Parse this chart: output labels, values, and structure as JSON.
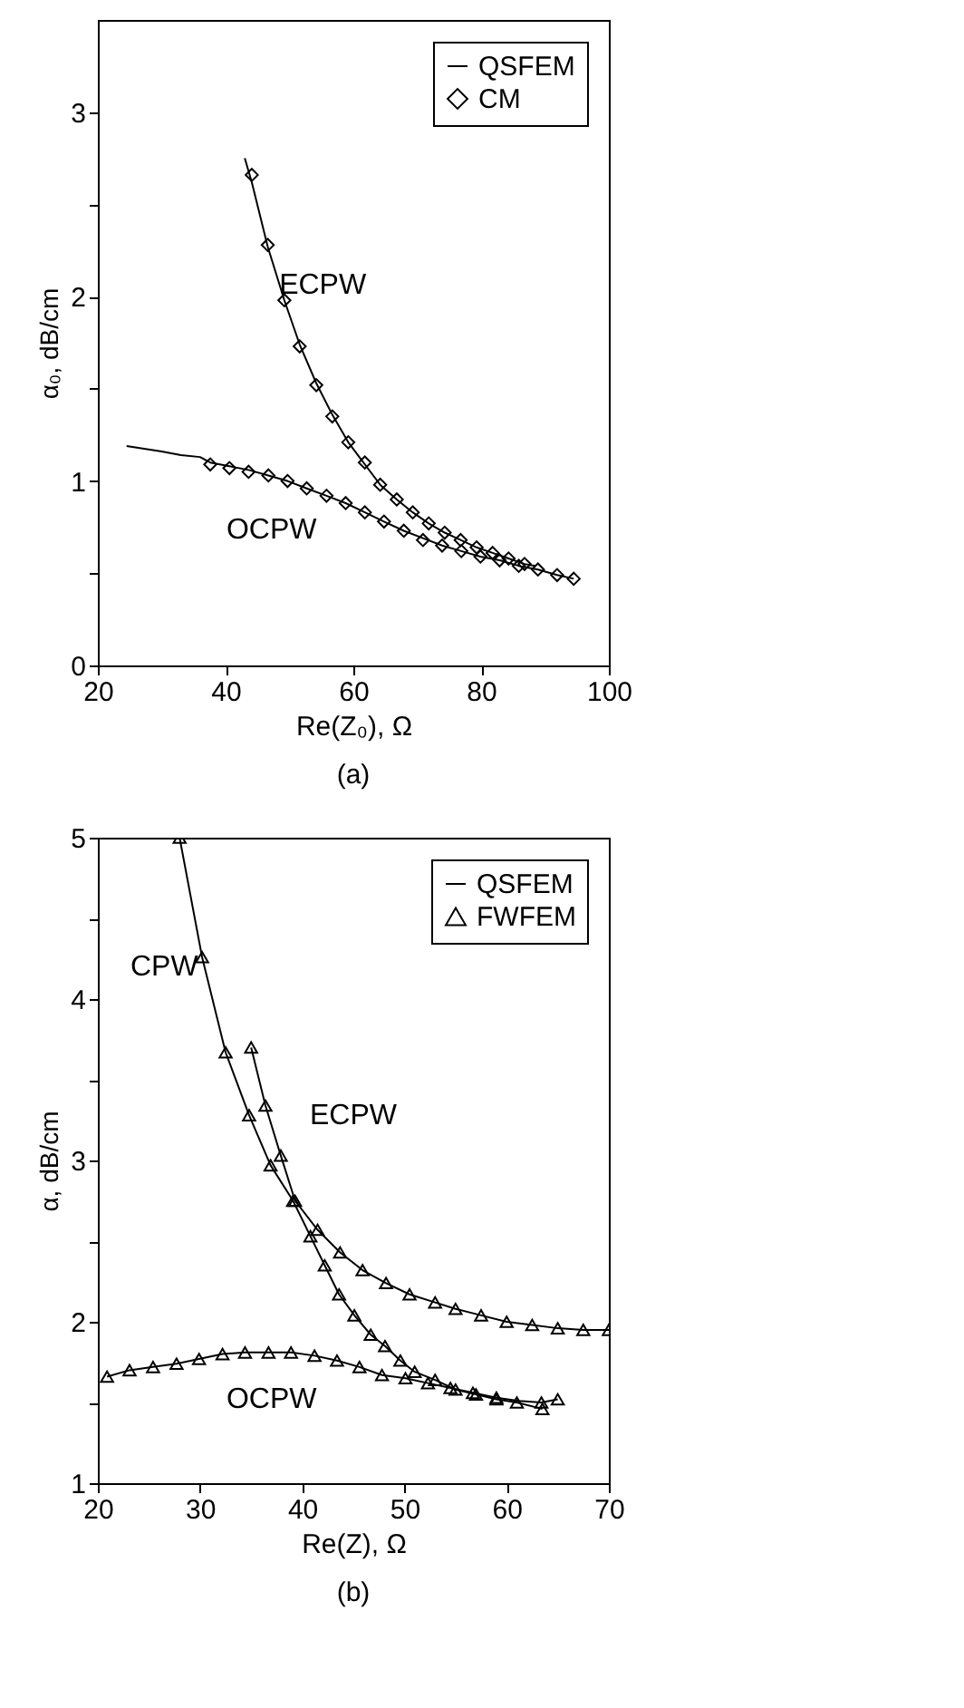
{
  "chart_data": [
    {
      "type": "line",
      "xlabel": "Re(Z₀), Ω",
      "ylabel": "α₀, dB/cm",
      "xlim": [
        20,
        100
      ],
      "ylim": [
        0,
        3.5
      ],
      "xticks": [
        20,
        40,
        60,
        80,
        100
      ],
      "yticks": [
        0,
        {
          "value": 0.5,
          "label": null
        },
        1,
        {
          "value": 1.5,
          "label": null
        },
        2,
        {
          "value": 2.5,
          "label": null
        },
        3
      ],
      "legend": "top right",
      "annotations": [
        "(a)",
        "ECPW",
        "OCPW"
      ],
      "series": [
        {
          "name": "QSFEM",
          "color": "#000000",
          "x": [
            43,
            44.1,
            46.6,
            49.2,
            51.6,
            54.2,
            56.7,
            59.2,
            61.8,
            64.2,
            66.8,
            69.3,
            71.8,
            74.3,
            76.8,
            79.3,
            81.8,
            84.3,
            86.8,
            88.5
          ],
          "values": [
            2.75,
            2.62,
            2.27,
            1.98,
            1.74,
            1.53,
            1.36,
            1.21,
            1.09,
            0.98,
            0.9,
            0.83,
            0.77,
            0.72,
            0.68,
            0.64,
            0.61,
            0.58,
            0.55,
            0.54
          ]
        },
        {
          "color": "#000000",
          "x": [
            24.5,
            30,
            33,
            36,
            37.6,
            40.6,
            43.6,
            46.7,
            49.7,
            52.7,
            55.8,
            58.8,
            61.8,
            64.8,
            67.9,
            70.9,
            73.9,
            76.9,
            79.9,
            82.9,
            85.9,
            88.9,
            91.9,
            94.5
          ],
          "values": [
            1.19,
            1.16,
            1.14,
            1.13,
            1.1,
            1.08,
            1.06,
            1.03,
            1.0,
            0.96,
            0.92,
            0.88,
            0.83,
            0.78,
            0.73,
            0.69,
            0.65,
            0.62,
            0.59,
            0.57,
            0.54,
            0.52,
            0.49,
            0.47
          ]
        },
        {
          "name": "CM",
          "type": "scatter",
          "marker": "diamond",
          "color": "#000000",
          "x": [
            44.1,
            46.6,
            49.2,
            51.6,
            54.2,
            56.7,
            59.2,
            61.8,
            64.2,
            66.8,
            69.3,
            71.8,
            74.3,
            76.8,
            79.3,
            81.8,
            84.3,
            86.8
          ],
          "values": [
            2.66,
            2.28,
            1.98,
            1.73,
            1.52,
            1.35,
            1.21,
            1.1,
            0.98,
            0.9,
            0.83,
            0.77,
            0.72,
            0.68,
            0.64,
            0.61,
            0.58,
            0.55
          ]
        },
        {
          "type": "scatter",
          "marker": "diamond",
          "color": "#000000",
          "x": [
            37.6,
            40.6,
            43.6,
            46.7,
            49.7,
            52.7,
            55.8,
            58.8,
            61.8,
            64.8,
            67.9,
            70.9,
            73.9,
            76.9,
            79.9,
            82.9,
            85.9,
            88.9,
            91.9,
            94.5
          ],
          "values": [
            1.09,
            1.07,
            1.05,
            1.03,
            1.0,
            0.96,
            0.92,
            0.88,
            0.83,
            0.78,
            0.73,
            0.68,
            0.65,
            0.62,
            0.59,
            0.57,
            0.54,
            0.52,
            0.49,
            0.47
          ]
        }
      ]
    },
    {
      "type": "line",
      "xlabel": "Re(Z),  Ω",
      "ylabel": "α, dB/cm",
      "xlim": [
        20,
        70
      ],
      "ylim": [
        1,
        5
      ],
      "xticks": [
        20,
        30,
        40,
        50,
        60,
        70
      ],
      "yticks": [
        1,
        {
          "value": 1.5,
          "label": null
        },
        2,
        {
          "value": 2.5,
          "label": null
        },
        3,
        {
          "value": 3.5,
          "label": null
        },
        4,
        {
          "value": 4.5,
          "label": null
        },
        5
      ],
      "legend": "top right",
      "annotations": [
        "(b)",
        "CPW",
        "ECPW",
        "OCPW"
      ],
      "series": [
        {
          "name": "QSFEM",
          "color": "#000000",
          "x": [
            28.0,
            30.2,
            32.5,
            34.8,
            36.9,
            39.1,
            40.8,
            42.2,
            43.6,
            45.1,
            46.7,
            48.1,
            49.6,
            51.0,
            53,
            55,
            57,
            59,
            61,
            63.5
          ],
          "values": [
            5.0,
            4.26,
            3.67,
            3.28,
            2.97,
            2.75,
            2.53,
            2.35,
            2.17,
            2.04,
            1.92,
            1.85,
            1.76,
            1.69,
            1.64,
            1.58,
            1.55,
            1.52,
            1.5,
            1.46
          ]
        },
        {
          "color": "#000000",
          "x": [
            35.0,
            36.4,
            37.9,
            39.3,
            41.5,
            43.7,
            45.9,
            48.2,
            50.5,
            53,
            55,
            57.5,
            60,
            62.5,
            65,
            67.5,
            70
          ],
          "values": [
            3.7,
            3.34,
            3.03,
            2.75,
            2.57,
            2.43,
            2.32,
            2.24,
            2.17,
            2.12,
            2.08,
            2.04,
            2.0,
            1.98,
            1.96,
            1.95,
            1.95
          ]
        },
        {
          "color": "#000000",
          "x": [
            20.9,
            23.1,
            25.4,
            27.7,
            29.9,
            32.2,
            34.4,
            36.7,
            38.9,
            41.2,
            43.4,
            45.6,
            47.8,
            50.1,
            52.3,
            54.5,
            56.7,
            59,
            61.2,
            63.4,
            65
          ],
          "values": [
            1.66,
            1.7,
            1.72,
            1.74,
            1.77,
            1.8,
            1.81,
            1.81,
            1.81,
            1.79,
            1.76,
            1.72,
            1.67,
            1.65,
            1.62,
            1.59,
            1.56,
            1.53,
            1.51,
            1.5,
            1.52
          ]
        },
        {
          "name": "FWFEM",
          "type": "scatter",
          "marker": "triangle",
          "color": "#000000",
          "x": [
            28.0,
            30.2,
            32.5,
            34.8,
            36.9,
            39.1,
            40.8,
            42.2,
            43.6,
            45.1,
            46.7,
            48.1,
            49.6,
            51.0,
            53,
            55,
            57,
            59,
            61,
            63.5
          ],
          "values": [
            5.0,
            4.26,
            3.67,
            3.28,
            2.97,
            2.75,
            2.53,
            2.35,
            2.17,
            2.04,
            1.92,
            1.85,
            1.76,
            1.69,
            1.64,
            1.58,
            1.55,
            1.52,
            1.5,
            1.46
          ]
        },
        {
          "type": "scatter",
          "marker": "triangle",
          "color": "#000000",
          "x": [
            35.0,
            36.4,
            37.9,
            39.3,
            41.5,
            43.7,
            45.9,
            48.2,
            50.5,
            53,
            55,
            57.5,
            60,
            62.5,
            65,
            67.5,
            70
          ],
          "values": [
            3.7,
            3.34,
            3.03,
            2.75,
            2.57,
            2.43,
            2.32,
            2.24,
            2.17,
            2.12,
            2.08,
            2.04,
            2.0,
            1.98,
            1.96,
            1.95,
            1.95
          ]
        },
        {
          "type": "scatter",
          "marker": "triangle",
          "color": "#000000",
          "x": [
            20.9,
            23.1,
            25.4,
            27.7,
            29.9,
            32.2,
            34.4,
            36.7,
            38.9,
            41.2,
            43.4,
            45.6,
            47.8,
            50.1,
            52.3,
            54.5,
            56.7,
            59,
            61.2,
            63.4,
            65
          ],
          "values": [
            1.66,
            1.7,
            1.72,
            1.74,
            1.77,
            1.8,
            1.81,
            1.81,
            1.81,
            1.79,
            1.76,
            1.72,
            1.67,
            1.65,
            1.62,
            1.59,
            1.56,
            1.53,
            null,
            1.5,
            1.52
          ]
        }
      ]
    }
  ]
}
